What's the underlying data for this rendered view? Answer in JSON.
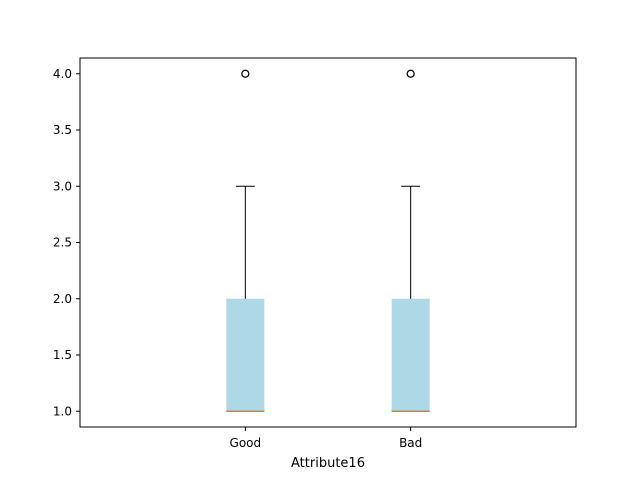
{
  "chart_data": {
    "type": "box",
    "title": "",
    "xlabel": "Attribute16",
    "ylabel": "",
    "ylim": [
      0.86,
      4.14
    ],
    "yticks": [
      1.0,
      1.5,
      2.0,
      2.5,
      3.0,
      3.5,
      4.0
    ],
    "ytick_labels": [
      "1.0",
      "1.5",
      "2.0",
      "2.5",
      "3.0",
      "3.5",
      "4.0"
    ],
    "categories": [
      "Good",
      "Bad"
    ],
    "boxes": [
      {
        "category": "Good",
        "whisker_low": 1.0,
        "q1": 1.0,
        "median": 1.0,
        "q3": 2.0,
        "whisker_high": 3.0,
        "outliers": [
          4.0
        ]
      },
      {
        "category": "Bad",
        "whisker_low": 1.0,
        "q1": 1.0,
        "median": 1.0,
        "q3": 2.0,
        "whisker_high": 3.0,
        "outliers": [
          4.0
        ]
      }
    ],
    "grid": false,
    "colors": {
      "box_fill": "#add8e6",
      "median": "#e07b39",
      "whisker": "#000000",
      "axes": "#000000"
    }
  }
}
